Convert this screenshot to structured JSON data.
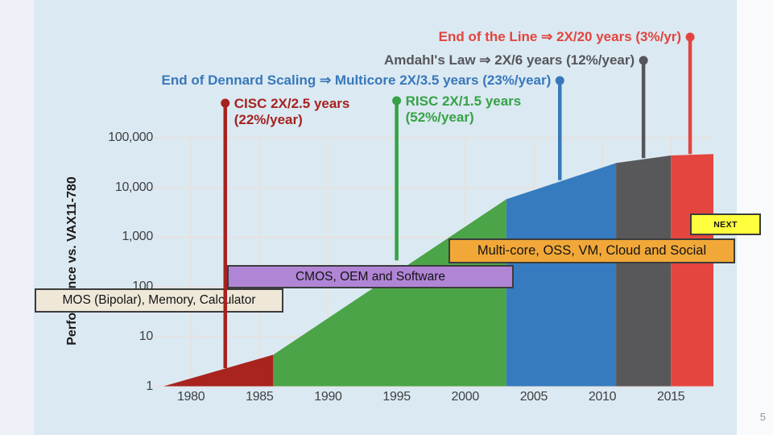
{
  "slide": {
    "page_number": "5"
  },
  "colors": {
    "panel_bg": "#dbe9f2",
    "left_margin_bg": "#eef1f7",
    "right_margin_bg": "#f8fafb",
    "gridline": "#e4e3e3",
    "axis_text": "#3e4042",
    "box_border": "#3c3c3c",
    "mos_box": "#efe8d9",
    "cmos_box": "#b185d6",
    "multicore_box": "#f2a838",
    "next_box": "#ffff3e",
    "era_dark_red": "#a9241e",
    "era_green": "#4ba447",
    "era_blue": "#367bbf",
    "era_gray": "#58585a",
    "era_red": "#e4453e"
  },
  "overlays": {
    "mos": "MOS (Bipolar), Memory, Calculator",
    "cmos": "CMOS, OEM and Software",
    "multicore": "Multi-core, OSS, VM, Cloud and Social",
    "next": "NEXT"
  },
  "chart_data": {
    "type": "area",
    "title": "",
    "xlabel": "",
    "ylabel": "Performance vs. VAX11-780",
    "y_scale": "log",
    "grid": true,
    "x_range": [
      1977.7,
      2018.1
    ],
    "y_range": [
      1,
      100000
    ],
    "x_ticks": [
      1980,
      1985,
      1990,
      1995,
      2000,
      2005,
      2010,
      2015
    ],
    "y_ticks": [
      {
        "value": 1,
        "label": "1"
      },
      {
        "value": 10,
        "label": "10"
      },
      {
        "value": 100,
        "label": "100"
      },
      {
        "value": 1000,
        "label": "1,000"
      },
      {
        "value": 10000,
        "label": "10,000"
      },
      {
        "value": 100000,
        "label": "100,000"
      }
    ],
    "eras": [
      {
        "id": "mos-bipolar",
        "color": "#a9241e",
        "start_year": 1978,
        "end_year": 1986,
        "start_perf": 1,
        "end_perf": 4.3
      },
      {
        "id": "risc-growth",
        "color": "#4ba447",
        "start_year": 1986,
        "end_year": 2003,
        "start_perf": 4.3,
        "end_perf": 5800
      },
      {
        "id": "multicore",
        "color": "#367bbf",
        "start_year": 2003,
        "end_year": 2011,
        "start_perf": 5800,
        "end_perf": 31000
      },
      {
        "id": "amdahl",
        "color": "#58585a",
        "start_year": 2011,
        "end_year": 2015,
        "start_perf": 31000,
        "end_perf": 44000
      },
      {
        "id": "end-of-line",
        "color": "#e4453e",
        "start_year": 2015,
        "end_year": 2018.1,
        "start_perf": 44000,
        "end_perf": 47000
      }
    ],
    "markers": [
      {
        "id": "cisc",
        "year": 1982.5,
        "color": "#a6221f",
        "dot_y": 128,
        "line_end_perf": 2.3,
        "align": "left",
        "lines": [
          "CISC 2X/2.5 years",
          "(22%/year)"
        ]
      },
      {
        "id": "risc",
        "year": 1995,
        "color": "#35a245",
        "dot_y": 125,
        "line_end_perf": 340,
        "align": "left",
        "lines": [
          "RISC 2X/1.5 years",
          "(52%/year)"
        ]
      },
      {
        "id": "dennard",
        "year": 2006.9,
        "color": "#3878ba",
        "dot_y": 100,
        "line_end_perf": 14000,
        "align": "right",
        "lines": [
          "End of Dennard Scaling ⇒ Multicore 2X/3.5 years (23%/year)"
        ]
      },
      {
        "id": "amdahl",
        "year": 2013,
        "color": "#55565a",
        "dot_y": 75,
        "line_end_perf": 39000,
        "align": "right",
        "lines": [
          "Amdahl's Law ⇒ 2X/6 years (12%/year)"
        ]
      },
      {
        "id": "end-of-line",
        "year": 2016.4,
        "color": "#e2453e",
        "dot_y": 46,
        "line_end_perf": 47000,
        "align": "right",
        "lines": [
          "End of the Line ⇒ 2X/20 years (3%/yr)"
        ]
      }
    ]
  }
}
